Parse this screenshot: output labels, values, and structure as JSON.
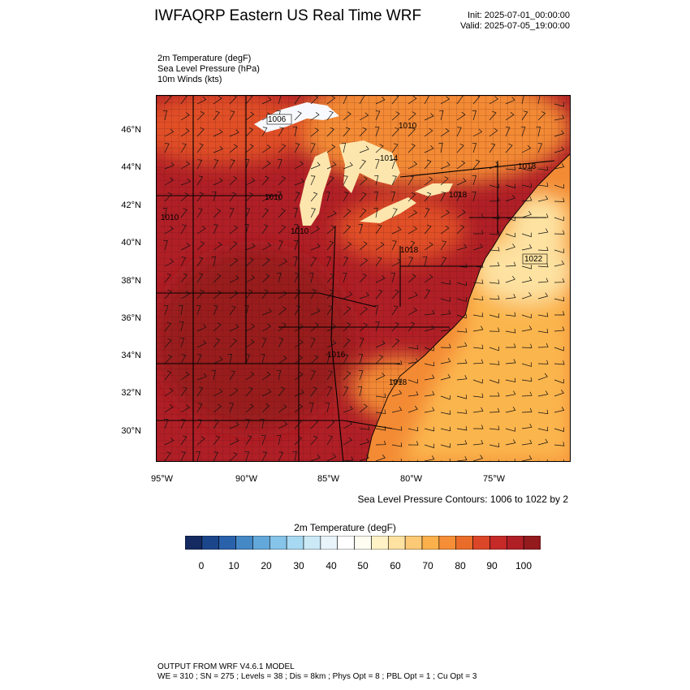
{
  "header": {
    "title": "IWFAQRP Eastern US Real Time WRF",
    "init": "Init: 2025-07-01_00:00:00",
    "valid": "Valid: 2025-07-05_19:00:00"
  },
  "variables": [
    "2m Temperature   (degF)",
    "Sea Level Pressure   (hPa)",
    "10m Winds   (kts)"
  ],
  "map": {
    "lat_ticks": [
      "46°N",
      "44°N",
      "42°N",
      "40°N",
      "38°N",
      "36°N",
      "34°N",
      "32°N",
      "30°N"
    ],
    "lon_ticks": [
      "95°W",
      "90°W",
      "85°W",
      "80°W",
      "75°W"
    ],
    "pressure_labels": [
      "1006",
      "1010",
      "1014",
      "1018",
      "1010",
      "1010",
      "1010",
      "1018",
      "1018",
      "1022",
      "1016",
      "1018"
    ],
    "contour_note": "Sea Level Pressure Contours: 1006 to 1022 by 2",
    "colors": {
      "hot": "#b01f26",
      "very_hot": "#991a1e",
      "warm": "#e14f28",
      "mild": "#f38a34",
      "cool": "#fbb54d",
      "light": "#fde2a1",
      "lake": "#fde6ad",
      "cold": "#f7f9ff"
    }
  },
  "colorbar": {
    "title": "2m Temperature   (degF)",
    "labels": [
      "0",
      "10",
      "20",
      "30",
      "40",
      "50",
      "60",
      "70",
      "80",
      "90",
      "100"
    ],
    "colors": [
      "#152a61",
      "#1c468c",
      "#2a61ab",
      "#4488c6",
      "#63a8da",
      "#86c4ea",
      "#a8d9f2",
      "#cbe9f6",
      "#e8f4fa",
      "#ffffff",
      "#fffdf2",
      "#fef2c6",
      "#fde2a1",
      "#fcc976",
      "#fbb04b",
      "#f58e36",
      "#ea6c2a",
      "#dc4628",
      "#c52a28",
      "#b01f26",
      "#931a1d"
    ]
  },
  "footer": {
    "line1": "OUTPUT FROM WRF V4.6.1 MODEL",
    "line2": "WE = 310 ; SN = 275 ; Levels = 38 ; Dis = 8km ; Phys Opt = 8 ; PBL Opt = 1 ; Cu Opt = 3"
  }
}
